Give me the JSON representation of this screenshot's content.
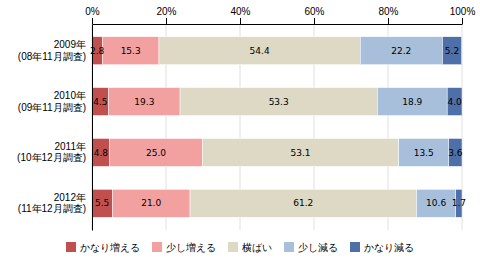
{
  "chart_data": {
    "type": "bar",
    "orientation": "horizontal",
    "stacked": true,
    "data_labels": true,
    "grid": true,
    "legend": "bottom",
    "categories": [
      "2009年\n(08年11月調査)",
      "2010年\n(09年11月調査)",
      "2011年\n(10年12月調査)",
      "2012年\n(11年12月調査)"
    ],
    "series": [
      {
        "name": "かなり増える",
        "color": "#c0504d",
        "values": [
          2.8,
          4.5,
          4.8,
          5.5
        ],
        "value_labels": [
          "2.8",
          "4.5",
          "4.8",
          "5.5"
        ]
      },
      {
        "name": "少し増える",
        "color": "#f2a0a0",
        "values": [
          15.3,
          19.3,
          25.0,
          21.0
        ],
        "value_labels": [
          "15.3",
          "19.3",
          "25.0",
          "21.0"
        ]
      },
      {
        "name": "横ばい",
        "color": "#ddd9c4",
        "values": [
          54.4,
          53.3,
          53.1,
          61.2
        ],
        "value_labels": [
          "54.4",
          "53.3",
          "53.1",
          "61.2"
        ]
      },
      {
        "name": "少し減る",
        "color": "#a7bfdb",
        "values": [
          22.2,
          18.9,
          13.5,
          10.6
        ],
        "value_labels": [
          "22.2",
          "18.9",
          "13.5",
          "10.6"
        ]
      },
      {
        "name": "かなり減る",
        "color": "#4f6fa8",
        "values": [
          5.2,
          4.0,
          3.6,
          1.7
        ],
        "value_labels": [
          "5.2",
          "4.0",
          "3.6",
          "1.7"
        ]
      }
    ],
    "xlim": [
      0,
      100
    ],
    "xticks": [
      {
        "value": 0,
        "label": "0%"
      },
      {
        "value": 20,
        "label": "20%"
      },
      {
        "value": 40,
        "label": "40%"
      },
      {
        "value": 60,
        "label": "60%"
      },
      {
        "value": 80,
        "label": "80%"
      },
      {
        "value": 100,
        "label": "100%"
      }
    ]
  }
}
